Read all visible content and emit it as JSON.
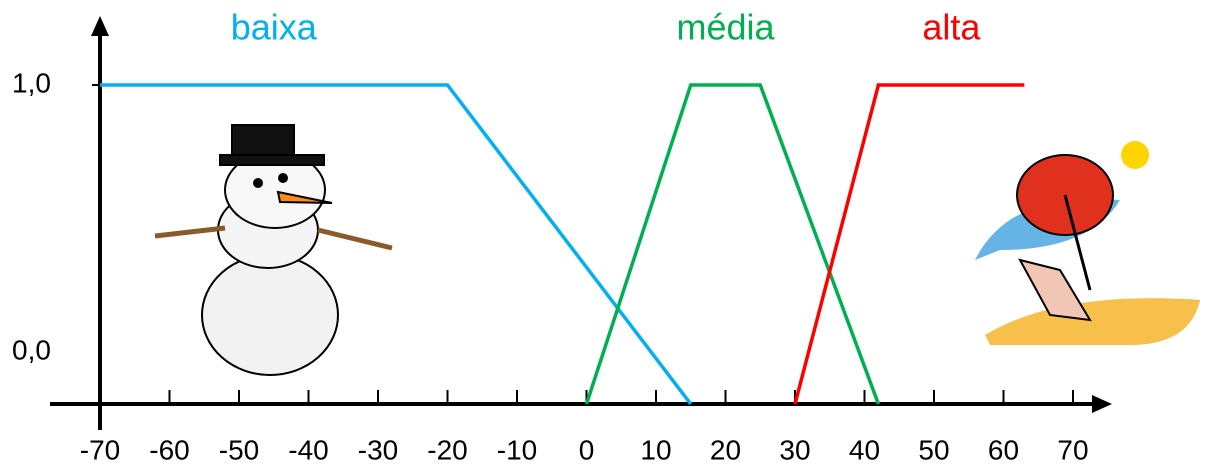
{
  "chart_data": {
    "type": "line",
    "series": [
      {
        "name": "baixa",
        "color": "#00b0f0",
        "x": [
          -70,
          -20,
          15
        ],
        "values": [
          1,
          1,
          0
        ]
      },
      {
        "name": "média",
        "color": "#00b050",
        "x": [
          0,
          15,
          25,
          42
        ],
        "values": [
          0,
          1,
          1,
          0
        ]
      },
      {
        "name": "alta",
        "color": "#ff0000",
        "x": [
          30,
          42,
          63
        ],
        "values": [
          0,
          1,
          1
        ]
      }
    ],
    "xlim": [
      -70,
      70
    ],
    "xticks": [
      -70,
      -60,
      -50,
      -40,
      -30,
      -20,
      -10,
      0,
      10,
      20,
      30,
      40,
      50,
      60,
      70
    ],
    "ylim": [
      0,
      1
    ],
    "yticks": [
      {
        "value": 0,
        "label": "0,0"
      },
      {
        "value": 1,
        "label": "1,0"
      }
    ]
  }
}
